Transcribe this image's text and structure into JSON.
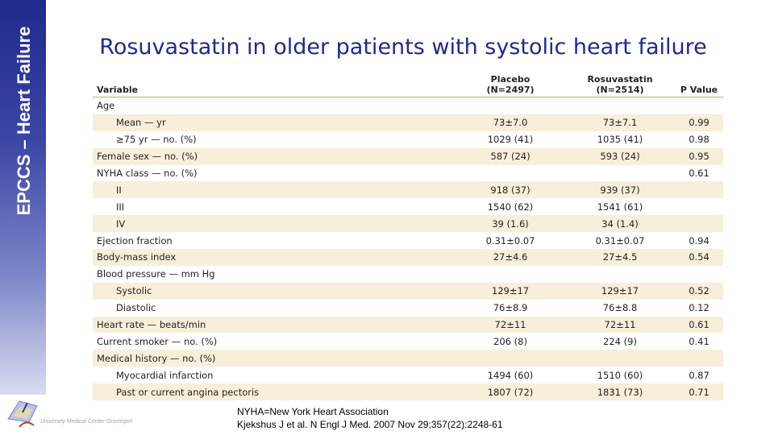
{
  "sidebar": {
    "label": "EPCCS – Heart Failure"
  },
  "logo": {
    "caption": "University Medical Center Groningen"
  },
  "title": "Rosuvastatin in older patients with systolic heart failure",
  "table": {
    "headers": {
      "variable": "Variable",
      "placebo_line1": "Placebo",
      "placebo_line2": "(N=2497)",
      "rosu_line1": "Rosuvastatin",
      "rosu_line2": "(N=2514)",
      "pvalue": "P Value"
    },
    "rows": [
      {
        "label": "Age",
        "placebo": "",
        "rosu": "",
        "p": ""
      },
      {
        "label": "Mean — yr",
        "placebo": "73±7.0",
        "rosu": "73±7.1",
        "p": "0.99"
      },
      {
        "label": "≥75 yr — no. (%)",
        "placebo": "1029 (41)",
        "rosu": "1035 (41)",
        "p": "0.98"
      },
      {
        "label": "Female sex — no. (%)",
        "placebo": "587 (24)",
        "rosu": "593 (24)",
        "p": "0.95"
      },
      {
        "label": "NYHA class — no. (%)",
        "placebo": "",
        "rosu": "",
        "p": "0.61"
      },
      {
        "label": "II",
        "placebo": "918 (37)",
        "rosu": "939 (37)",
        "p": ""
      },
      {
        "label": "III",
        "placebo": "1540 (62)",
        "rosu": "1541 (61)",
        "p": ""
      },
      {
        "label": "IV",
        "placebo": "39 (1.6)",
        "rosu": "34 (1.4)",
        "p": ""
      },
      {
        "label": "Ejection fraction",
        "placebo": "0.31±0.07",
        "rosu": "0.31±0.07",
        "p": "0.94"
      },
      {
        "label": "Body-mass index",
        "placebo": "27±4.6",
        "rosu": "27±4.5",
        "p": "0.54"
      },
      {
        "label": "Blood pressure — mm Hg",
        "placebo": "",
        "rosu": "",
        "p": ""
      },
      {
        "label": "Systolic",
        "placebo": "129±17",
        "rosu": "129±17",
        "p": "0.52"
      },
      {
        "label": "Diastolic",
        "placebo": "76±8.9",
        "rosu": "76±8.8",
        "p": "0.12"
      },
      {
        "label": "Heart rate — beats/min",
        "placebo": "72±11",
        "rosu": "72±11",
        "p": "0.61"
      },
      {
        "label": "Current smoker — no. (%)",
        "placebo": "206 (8)",
        "rosu": "224 (9)",
        "p": "0.41"
      },
      {
        "label": "Medical history — no. (%)",
        "placebo": "",
        "rosu": "",
        "p": ""
      },
      {
        "label": "Myocardial infarction",
        "placebo": "1494 (60)",
        "rosu": "1510 (60)",
        "p": "0.87"
      },
      {
        "label": "Past or current angina pectoris",
        "placebo": "1807 (72)",
        "rosu": "1831 (73)",
        "p": "0.71"
      }
    ]
  },
  "footnote": {
    "line1": "NYHA=New York Heart Association",
    "line2": "Kjekshus J et al. N Engl J Med. 2007 Nov 29;357(22):2248-61"
  },
  "colors": {
    "sidebar_top": "#1f2a8a",
    "title": "#1f2a8a",
    "row_shade": "#f7efda"
  }
}
